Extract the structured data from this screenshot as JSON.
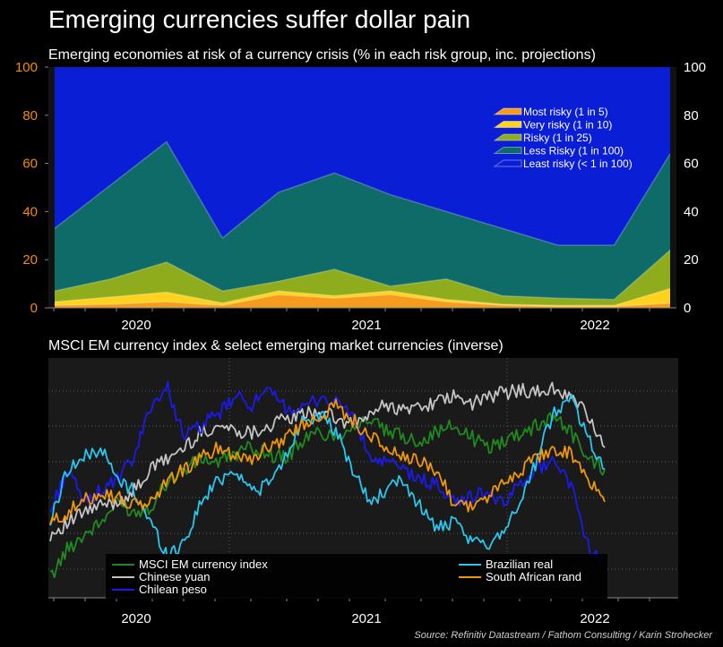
{
  "title": "Emerging currencies suffer dollar pain",
  "source": "Source: Refinitiv Datastream / Fathom Consulting / Karin Strohecker",
  "chart_data": [
    {
      "type": "area",
      "title": "Emerging economies at risk of a currency crisis (% in each risk group, inc. projections)",
      "x": [
        "2019-08",
        "2019-11",
        "2020-02",
        "2020-05",
        "2020-08",
        "2020-11",
        "2021-02",
        "2021-05",
        "2021-08",
        "2021-11",
        "2022-02",
        "2022-05"
      ],
      "x_ticks": [
        "2020",
        "2021",
        "2022"
      ],
      "ylim": [
        0,
        100
      ],
      "y_ticks": [
        "0",
        "20",
        "40",
        "60",
        "80",
        "100"
      ],
      "stacking": "cumulative top boundaries",
      "series": [
        {
          "name": "Most risky (1 in 5)",
          "color": "#f59b1e",
          "values": [
            1,
            1.5,
            2.5,
            1,
            5.5,
            4,
            5.5,
            2.5,
            1,
            0.5,
            0.5,
            2
          ]
        },
        {
          "name": "Very risky (1 in 10)",
          "color": "#ffd21e",
          "values": [
            2.5,
            4.5,
            6.5,
            2,
            7,
            5,
            7,
            3.5,
            1.5,
            1,
            1,
            8
          ]
        },
        {
          "name": "Risky (1 in 25)",
          "color": "#8fac1c",
          "values": [
            7,
            12,
            19,
            7,
            11,
            16,
            9,
            12,
            5,
            4,
            3.5,
            24
          ]
        },
        {
          "name": "Less Risky (1 in 100)",
          "color": "#0e6b68",
          "values": [
            33,
            51,
            69,
            29,
            48,
            56,
            47,
            40,
            33,
            26,
            26,
            64
          ]
        },
        {
          "name": "Least risky (< 1 in 100)",
          "color": "#0a1ed6",
          "values": [
            100,
            100,
            100,
            100,
            100,
            100,
            100,
            100,
            100,
            100,
            100,
            100
          ]
        }
      ]
    },
    {
      "type": "line",
      "title": "MSCI EM currency index & select emerging market currencies (inverse)",
      "x_ticks": [
        "2020",
        "2021",
        "2022"
      ],
      "x": [
        "2019-09",
        "2019-10",
        "2019-11",
        "2019-12",
        "2020-01",
        "2020-02",
        "2020-03",
        "2020-04",
        "2020-05",
        "2020-06",
        "2020-07",
        "2020-08",
        "2020-09",
        "2020-10",
        "2020-11",
        "2020-12",
        "2021-01",
        "2021-02",
        "2021-03",
        "2021-04",
        "2021-05",
        "2021-06",
        "2021-07",
        "2021-08",
        "2021-09",
        "2021-10",
        "2021-11",
        "2021-12",
        "2022-01",
        "2022-02",
        "2022-03",
        "2022-04",
        "2022-05",
        "2022-06"
      ],
      "series": [
        {
          "name": "MSCI EM currency index",
          "color": "#1f8a1f",
          "values": [
            5,
            18,
            25,
            30,
            40,
            35,
            38,
            50,
            55,
            60,
            58,
            62,
            65,
            62,
            60,
            68,
            72,
            70,
            75,
            78,
            72,
            70,
            68,
            72,
            75,
            70,
            65,
            68,
            72,
            75,
            80,
            72,
            60,
            55
          ]
        },
        {
          "name": "Chinese yuan",
          "color": "#c4c4c4",
          "values": [
            25,
            30,
            35,
            38,
            40,
            45,
            55,
            60,
            65,
            72,
            75,
            73,
            72,
            75,
            78,
            80,
            82,
            78,
            75,
            80,
            85,
            82,
            84,
            86,
            88,
            85,
            88,
            90,
            92,
            90,
            92,
            88,
            80,
            65
          ]
        },
        {
          "name": "Chilean peso",
          "color": "#1a1af0",
          "values": [
            35,
            55,
            40,
            45,
            50,
            60,
            85,
            92,
            70,
            75,
            80,
            88,
            85,
            90,
            84,
            82,
            88,
            86,
            80,
            60,
            58,
            55,
            50,
            48,
            40,
            42,
            45,
            38,
            50,
            55,
            60,
            48,
            20,
            10
          ]
        },
        {
          "name": "Brazilian real",
          "color": "#2ac6ee",
          "values": [
            30,
            55,
            60,
            65,
            50,
            45,
            30,
            15,
            22,
            40,
            50,
            55,
            45,
            48,
            60,
            78,
            80,
            72,
            55,
            40,
            45,
            50,
            38,
            28,
            30,
            22,
            20,
            28,
            40,
            60,
            82,
            88,
            70,
            55
          ]
        },
        {
          "name": "South African rand",
          "color": "#f0960a",
          "values": [
            30,
            35,
            40,
            45,
            42,
            38,
            40,
            50,
            55,
            60,
            65,
            62,
            60,
            65,
            70,
            75,
            80,
            84,
            78,
            70,
            65,
            60,
            58,
            55,
            40,
            38,
            42,
            48,
            55,
            60,
            65,
            62,
            50,
            40
          ]
        }
      ]
    }
  ]
}
